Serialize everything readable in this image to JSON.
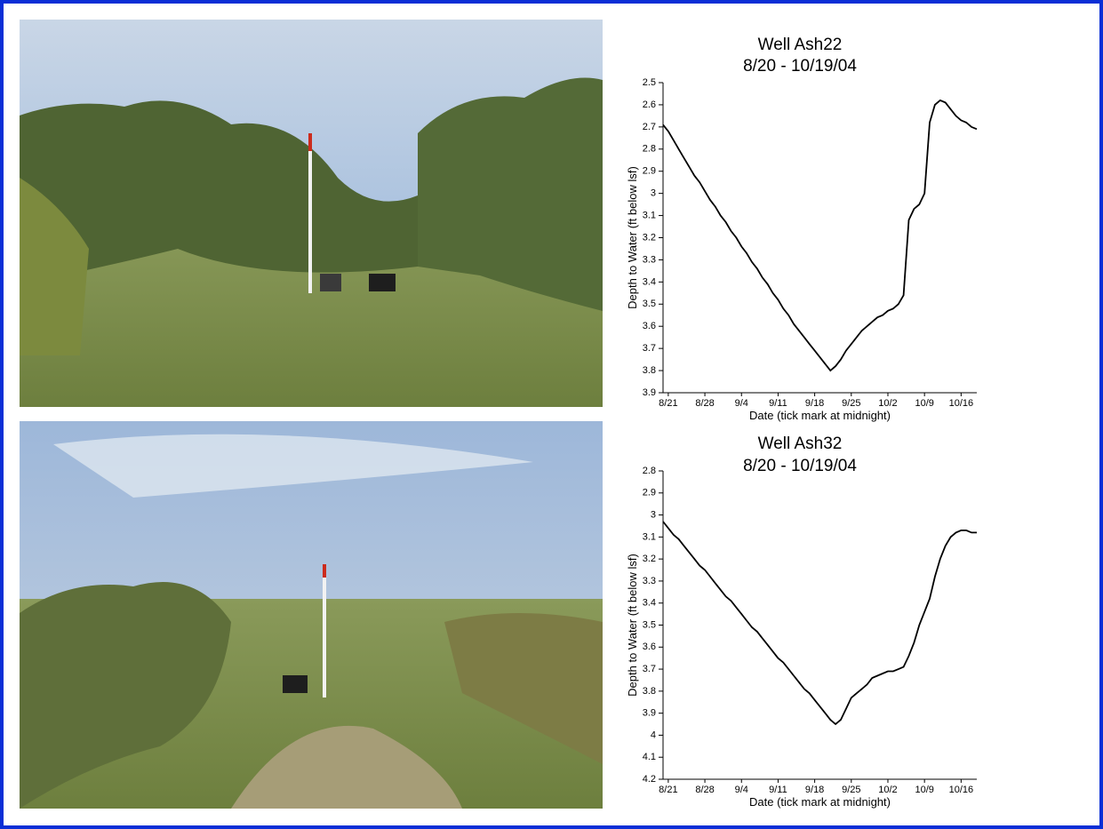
{
  "chart_data": [
    {
      "type": "line",
      "title": "Well Ash22",
      "subtitle": "8/20 - 10/19/04",
      "x_label": "Date (tick mark at midnight)",
      "y_label": "Depth to Water (ft below lsf)",
      "x": [
        "8/20",
        "8/21",
        "8/22",
        "8/23",
        "8/24",
        "8/25",
        "8/26",
        "8/27",
        "8/28",
        "8/29",
        "8/30",
        "8/31",
        "9/1",
        "9/2",
        "9/3",
        "9/4",
        "9/5",
        "9/6",
        "9/7",
        "9/8",
        "9/9",
        "9/10",
        "9/11",
        "9/12",
        "9/13",
        "9/14",
        "9/15",
        "9/16",
        "9/17",
        "9/18",
        "9/19",
        "9/20",
        "9/21",
        "9/22",
        "9/23",
        "9/24",
        "9/25",
        "9/26",
        "9/27",
        "9/28",
        "9/29",
        "9/30",
        "10/1",
        "10/2",
        "10/3",
        "10/4",
        "10/5",
        "10/6",
        "10/7",
        "10/8",
        "10/9",
        "10/10",
        "10/11",
        "10/12",
        "10/13",
        "10/14",
        "10/15",
        "10/16",
        "10/17",
        "10/18",
        "10/19"
      ],
      "values": [
        2.69,
        2.72,
        2.76,
        2.8,
        2.84,
        2.88,
        2.92,
        2.95,
        2.99,
        3.03,
        3.06,
        3.1,
        3.13,
        3.17,
        3.2,
        3.24,
        3.27,
        3.31,
        3.34,
        3.38,
        3.41,
        3.45,
        3.48,
        3.52,
        3.55,
        3.59,
        3.62,
        3.65,
        3.68,
        3.71,
        3.74,
        3.77,
        3.8,
        3.78,
        3.75,
        3.71,
        3.68,
        3.65,
        3.62,
        3.6,
        3.58,
        3.56,
        3.55,
        3.53,
        3.52,
        3.5,
        3.46,
        3.12,
        3.07,
        3.05,
        3.0,
        2.68,
        2.6,
        2.58,
        2.59,
        2.62,
        2.65,
        2.67,
        2.68,
        2.7,
        2.71
      ],
      "color": "#000000",
      "y_inverted": true,
      "ylim": [
        2.5,
        3.9
      ],
      "yticks": [
        2.5,
        2.6,
        2.7,
        2.8,
        2.9,
        3,
        3.1,
        3.2,
        3.3,
        3.4,
        3.5,
        3.6,
        3.7,
        3.8,
        3.9
      ],
      "xticks": [
        "8/21",
        "8/28",
        "9/4",
        "9/11",
        "9/18",
        "9/25",
        "10/2",
        "10/9",
        "10/16"
      ]
    },
    {
      "type": "line",
      "title": "Well Ash32",
      "subtitle": "8/20 - 10/19/04",
      "x_label": "Date (tick mark at midnight)",
      "y_label": "Depth to Water (ft below lsf)",
      "x": [
        "8/20",
        "8/21",
        "8/22",
        "8/23",
        "8/24",
        "8/25",
        "8/26",
        "8/27",
        "8/28",
        "8/29",
        "8/30",
        "8/31",
        "9/1",
        "9/2",
        "9/3",
        "9/4",
        "9/5",
        "9/6",
        "9/7",
        "9/8",
        "9/9",
        "9/10",
        "9/11",
        "9/12",
        "9/13",
        "9/14",
        "9/15",
        "9/16",
        "9/17",
        "9/18",
        "9/19",
        "9/20",
        "9/21",
        "9/22",
        "9/23",
        "9/24",
        "9/25",
        "9/26",
        "9/27",
        "9/28",
        "9/29",
        "9/30",
        "10/1",
        "10/2",
        "10/3",
        "10/4",
        "10/5",
        "10/6",
        "10/7",
        "10/8",
        "10/9",
        "10/10",
        "10/11",
        "10/12",
        "10/13",
        "10/14",
        "10/15",
        "10/16",
        "10/17",
        "10/18",
        "10/19"
      ],
      "values": [
        3.03,
        3.06,
        3.09,
        3.11,
        3.14,
        3.17,
        3.2,
        3.23,
        3.25,
        3.28,
        3.31,
        3.34,
        3.37,
        3.39,
        3.42,
        3.45,
        3.48,
        3.51,
        3.53,
        3.56,
        3.59,
        3.62,
        3.65,
        3.67,
        3.7,
        3.73,
        3.76,
        3.79,
        3.81,
        3.84,
        3.87,
        3.9,
        3.93,
        3.95,
        3.93,
        3.88,
        3.83,
        3.81,
        3.79,
        3.77,
        3.74,
        3.73,
        3.72,
        3.71,
        3.71,
        3.7,
        3.69,
        3.64,
        3.58,
        3.5,
        3.44,
        3.38,
        3.28,
        3.2,
        3.14,
        3.1,
        3.08,
        3.07,
        3.07,
        3.08,
        3.08
      ],
      "color": "#000000",
      "y_inverted": true,
      "ylim": [
        2.8,
        4.2
      ],
      "yticks": [
        2.8,
        2.9,
        3,
        3.1,
        3.2,
        3.3,
        3.4,
        3.5,
        3.6,
        3.7,
        3.8,
        3.9,
        4,
        4.1,
        4.2
      ],
      "xticks": [
        "8/21",
        "8/28",
        "9/4",
        "9/11",
        "9/18",
        "9/25",
        "10/2",
        "10/9",
        "10/16"
      ]
    }
  ]
}
